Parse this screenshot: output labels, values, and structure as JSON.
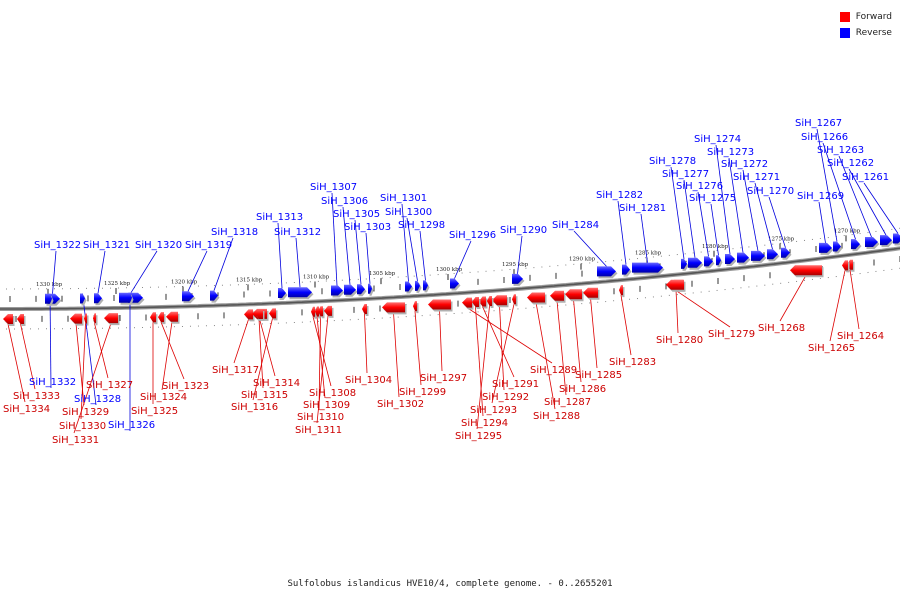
{
  "legend": {
    "forward_label": "Forward",
    "reverse_label": "Reverse",
    "forward_color": "#ff0000",
    "reverse_color": "#0000ff"
  },
  "caption": "Sulfolobus islandicus HVE10/4, complete genome. - 0..2655201",
  "ticks": [
    "1330 kbp",
    "1325 kbp",
    "1320 kbp",
    "1315 kbp",
    "1310 kbp",
    "1305 kbp",
    "1300 kbp",
    "1295 kbp",
    "1290 kbp",
    "1285 kbp",
    "1280 kbp",
    "1275 kbp",
    "1270 kbp"
  ],
  "genes": [
    {
      "label": "SiH_1322",
      "strand": "reverse"
    },
    {
      "label": "SiH_1321",
      "strand": "reverse"
    },
    {
      "label": "SiH_1320",
      "strand": "reverse"
    },
    {
      "label": "SiH_1319",
      "strand": "reverse"
    },
    {
      "label": "SiH_1318",
      "strand": "reverse"
    },
    {
      "label": "SiH_1313",
      "strand": "reverse"
    },
    {
      "label": "SiH_1312",
      "strand": "reverse"
    },
    {
      "label": "SiH_1307",
      "strand": "reverse"
    },
    {
      "label": "SiH_1306",
      "strand": "reverse"
    },
    {
      "label": "SiH_1305",
      "strand": "reverse"
    },
    {
      "label": "SiH_1303",
      "strand": "reverse"
    },
    {
      "label": "SiH_1301",
      "strand": "reverse"
    },
    {
      "label": "SiH_1300",
      "strand": "reverse"
    },
    {
      "label": "SiH_1298",
      "strand": "reverse"
    },
    {
      "label": "SiH_1296",
      "strand": "reverse"
    },
    {
      "label": "SiH_1290",
      "strand": "reverse"
    },
    {
      "label": "SiH_1284",
      "strand": "reverse"
    },
    {
      "label": "SiH_1282",
      "strand": "reverse"
    },
    {
      "label": "SiH_1281",
      "strand": "reverse"
    },
    {
      "label": "SiH_1278",
      "strand": "reverse"
    },
    {
      "label": "SiH_1277",
      "strand": "reverse"
    },
    {
      "label": "SiH_1276",
      "strand": "reverse"
    },
    {
      "label": "SiH_1275",
      "strand": "reverse"
    },
    {
      "label": "SiH_1274",
      "strand": "reverse"
    },
    {
      "label": "SiH_1273",
      "strand": "reverse"
    },
    {
      "label": "SiH_1272",
      "strand": "reverse"
    },
    {
      "label": "SiH_1271",
      "strand": "reverse"
    },
    {
      "label": "SiH_1270",
      "strand": "reverse"
    },
    {
      "label": "SiH_1269",
      "strand": "reverse"
    },
    {
      "label": "SiH_1267",
      "strand": "reverse"
    },
    {
      "label": "SiH_1266",
      "strand": "reverse"
    },
    {
      "label": "SiH_1263",
      "strand": "reverse"
    },
    {
      "label": "SiH_1262",
      "strand": "reverse"
    },
    {
      "label": "SiH_1261",
      "strand": "reverse"
    },
    {
      "label": "SiH_1332",
      "strand": "reverse"
    },
    {
      "label": "SiH_1328",
      "strand": "reverse"
    },
    {
      "label": "SiH_1326",
      "strand": "reverse"
    },
    {
      "label": "SiH_1333",
      "strand": "forward"
    },
    {
      "label": "SiH_1334",
      "strand": "forward"
    },
    {
      "label": "SiH_1327",
      "strand": "forward"
    },
    {
      "label": "SiH_1329",
      "strand": "forward"
    },
    {
      "label": "SiH_1330",
      "strand": "forward"
    },
    {
      "label": "SiH_1331",
      "strand": "forward"
    },
    {
      "label": "SiH_1323",
      "strand": "forward"
    },
    {
      "label": "SiH_1324",
      "strand": "forward"
    },
    {
      "label": "SiH_1325",
      "strand": "forward"
    },
    {
      "label": "SiH_1317",
      "strand": "forward"
    },
    {
      "label": "SiH_1314",
      "strand": "forward"
    },
    {
      "label": "SiH_1315",
      "strand": "forward"
    },
    {
      "label": "SiH_1316",
      "strand": "forward"
    },
    {
      "label": "SiH_1308",
      "strand": "forward"
    },
    {
      "label": "SiH_1309",
      "strand": "forward"
    },
    {
      "label": "SiH_1310",
      "strand": "forward"
    },
    {
      "label": "SiH_1311",
      "strand": "forward"
    },
    {
      "label": "SiH_1304",
      "strand": "forward"
    },
    {
      "label": "SiH_1299",
      "strand": "forward"
    },
    {
      "label": "SiH_1302",
      "strand": "forward"
    },
    {
      "label": "SiH_1297",
      "strand": "forward"
    },
    {
      "label": "SiH_1289",
      "strand": "forward"
    },
    {
      "label": "SiH_1291",
      "strand": "forward"
    },
    {
      "label": "SiH_1292",
      "strand": "forward"
    },
    {
      "label": "SiH_1293",
      "strand": "forward"
    },
    {
      "label": "SiH_1294",
      "strand": "forward"
    },
    {
      "label": "SiH_1295",
      "strand": "forward"
    },
    {
      "label": "SiH_1285",
      "strand": "forward"
    },
    {
      "label": "SiH_1286",
      "strand": "forward"
    },
    {
      "label": "SiH_1287",
      "strand": "forward"
    },
    {
      "label": "SiH_1288",
      "strand": "forward"
    },
    {
      "label": "SiH_1283",
      "strand": "forward"
    },
    {
      "label": "SiH_1280",
      "strand": "forward"
    },
    {
      "label": "SiH_1279",
      "strand": "forward"
    },
    {
      "label": "SiH_1268",
      "strand": "forward"
    },
    {
      "label": "SiH_1264",
      "strand": "forward"
    },
    {
      "label": "SiH_1265",
      "strand": "forward"
    }
  ]
}
